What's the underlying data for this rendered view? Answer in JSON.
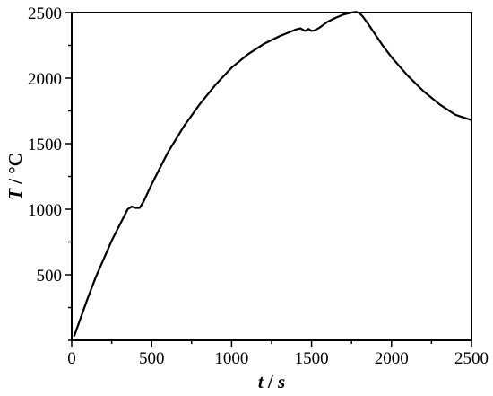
{
  "chart_data": {
    "type": "line",
    "xlabel_var": "t",
    "xlabel_unit": "s",
    "ylabel_var": "T",
    "ylabel_unit": "°C",
    "xlim": [
      0,
      2500
    ],
    "ylim": [
      0,
      2500
    ],
    "xticks": [
      0,
      500,
      1000,
      1500,
      2000,
      2500
    ],
    "yticks": [
      500,
      1000,
      1500,
      2000,
      2500
    ],
    "grid": false,
    "series": [
      {
        "color": "#000000",
        "x": [
          15,
          50,
          100,
          150,
          200,
          250,
          300,
          350,
          375,
          400,
          425,
          450,
          500,
          600,
          700,
          800,
          900,
          1000,
          1100,
          1200,
          1300,
          1400,
          1430,
          1460,
          1480,
          1500,
          1520,
          1550,
          1600,
          1650,
          1700,
          1750,
          1780,
          1800,
          1820,
          1850,
          1900,
          1950,
          2000,
          2050,
          2100,
          2150,
          2200,
          2250,
          2300,
          2350,
          2400,
          2450,
          2500
        ],
        "y": [
          30,
          150,
          320,
          480,
          620,
          760,
          880,
          1000,
          1020,
          1010,
          1010,
          1060,
          1190,
          1430,
          1630,
          1800,
          1950,
          2080,
          2180,
          2260,
          2320,
          2370,
          2380,
          2360,
          2375,
          2360,
          2365,
          2385,
          2430,
          2460,
          2485,
          2500,
          2505,
          2495,
          2470,
          2420,
          2330,
          2240,
          2160,
          2090,
          2020,
          1960,
          1900,
          1850,
          1800,
          1760,
          1720,
          1700,
          1680
        ]
      }
    ]
  }
}
